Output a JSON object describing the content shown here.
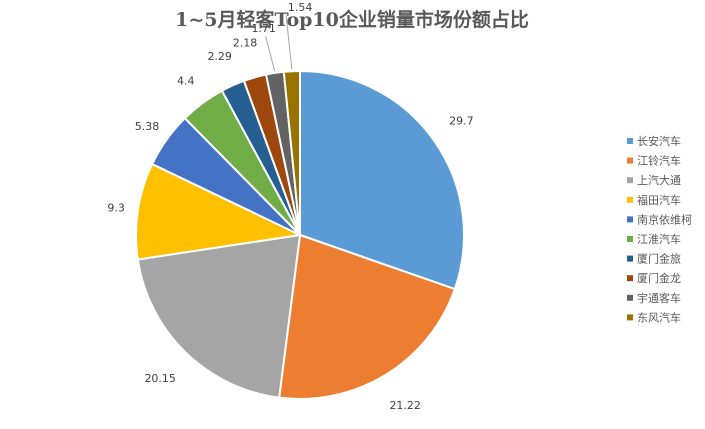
{
  "chart_data": {
    "type": "pie",
    "title": "1~5月轻客Top10企业销量市场份额占比",
    "legend_position": "right",
    "slices": [
      {
        "name": "长安汽车",
        "value": 29.7,
        "label": "29.7",
        "color": "#5b9bd5"
      },
      {
        "name": "江铃汽车",
        "value": 21.22,
        "label": "21.22",
        "color": "#ed7d31"
      },
      {
        "name": "上汽大通",
        "value": 20.15,
        "label": "20.15",
        "color": "#a5a5a5"
      },
      {
        "name": "福田汽车",
        "value": 9.3,
        "label": "9.3",
        "color": "#ffc000"
      },
      {
        "name": "南京依维柯",
        "value": 5.38,
        "label": "5.38",
        "color": "#4472c4"
      },
      {
        "name": "江淮汽车",
        "value": 4.4,
        "label": "4.4",
        "color": "#70ad47"
      },
      {
        "name": "厦门金旅",
        "value": 2.29,
        "label": "2.29",
        "color": "#255e91"
      },
      {
        "name": "厦门金龙",
        "value": 2.18,
        "label": "2.18",
        "color": "#9e480e"
      },
      {
        "name": "宇通客车",
        "value": 1.71,
        "label": "1.71",
        "color": "#636363"
      },
      {
        "name": "东风汽车",
        "value": 1.54,
        "label": "1.54",
        "color": "#997300"
      }
    ]
  }
}
